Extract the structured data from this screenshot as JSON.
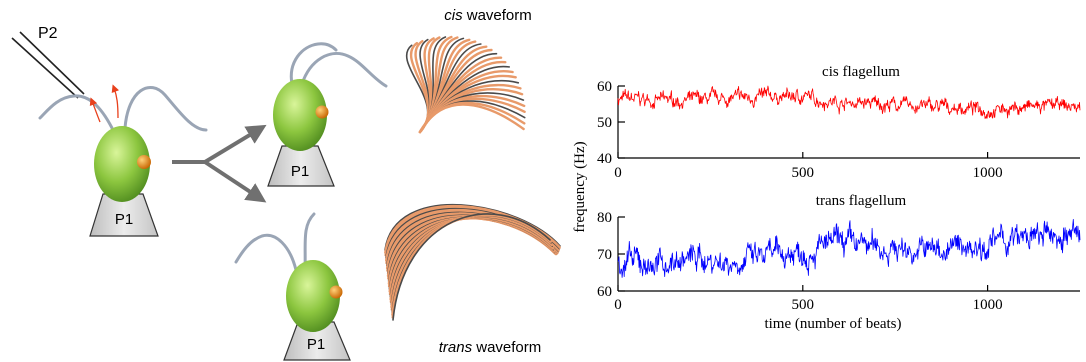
{
  "labels": {
    "pipette": "P2",
    "holder_main": "P1",
    "holder_cis": "P1",
    "holder_trans": "P1",
    "cis_waveform_em": "cis",
    "cis_waveform_rest": " waveform",
    "trans_waveform_em": "trans",
    "trans_waveform_rest": " waveform"
  },
  "colors": {
    "cell_body": "#8cc63f",
    "eyespot": "#e88a00",
    "flagellum": "#9aa5b5",
    "holder": "#d9d9d9",
    "arrow": "#707070",
    "motion_arrow": "#e8401c",
    "wave_light": "#e89a6a",
    "wave_dark": "#4a4a4a",
    "cis_trace": "#ff0000",
    "trans_trace": "#0000ff"
  },
  "chart_data": [
    {
      "type": "line",
      "title": "cis flagellum",
      "xlim": [
        0,
        1250
      ],
      "ylim": [
        40,
        60
      ],
      "yticks": [
        "40",
        "50",
        "60"
      ],
      "xticks": [
        "0",
        "500",
        "1000"
      ],
      "xlabel": "",
      "series": [
        {
          "color": "#ff0000",
          "x": [
            0,
            100,
            200,
            300,
            400,
            500,
            600,
            700,
            800,
            900,
            1000,
            1100,
            1200,
            1250
          ],
          "values": [
            56.5,
            56,
            56,
            56.5,
            57,
            57,
            55.5,
            55,
            54.5,
            54,
            53.5,
            54,
            54.5,
            54
          ]
        }
      ]
    },
    {
      "type": "line",
      "title": "trans flagellum",
      "xlim": [
        0,
        1250
      ],
      "ylim": [
        60,
        80
      ],
      "yticks": [
        "60",
        "70",
        "80"
      ],
      "xticks": [
        "0",
        "500",
        "1000"
      ],
      "xlabel": "time (number of beats)",
      "series": [
        {
          "color": "#0000ff",
          "x": [
            0,
            100,
            200,
            300,
            400,
            500,
            600,
            700,
            800,
            900,
            1000,
            1100,
            1200,
            1250
          ],
          "values": [
            68,
            67,
            69,
            68,
            69,
            71,
            73,
            72,
            71,
            71.5,
            73,
            74,
            75,
            75
          ]
        }
      ]
    }
  ],
  "shared_ylabel": "frequency (Hz)"
}
